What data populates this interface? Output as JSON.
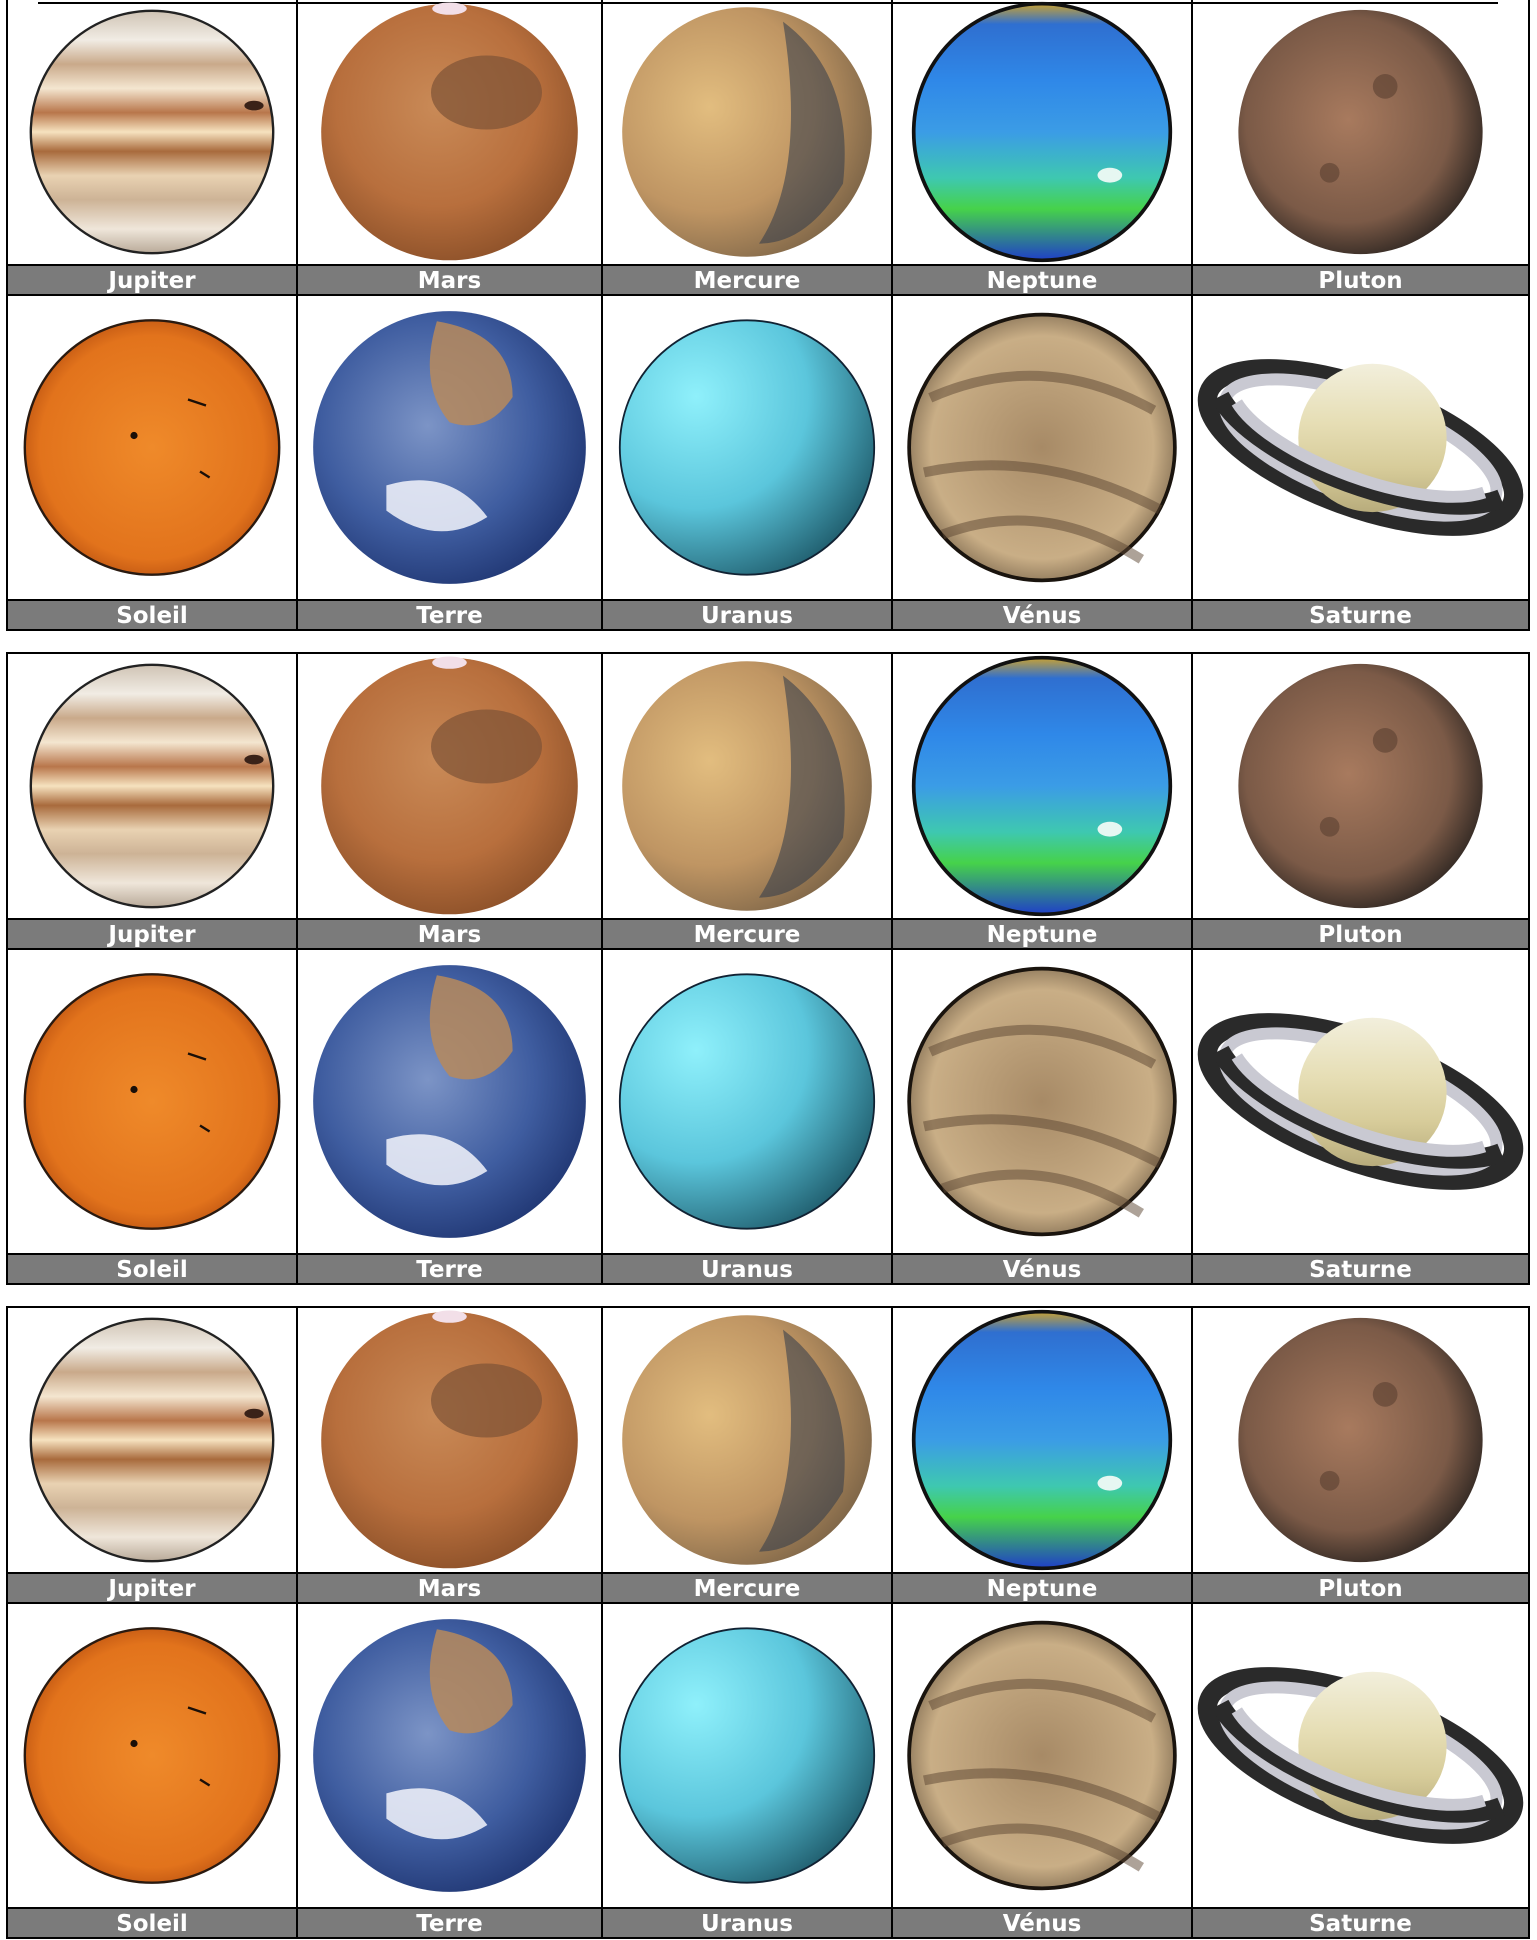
{
  "sheets": [
    {
      "row1": [
        "Jupiter",
        "Mars",
        "Mercure",
        "Neptune",
        "Pluton"
      ],
      "row2": [
        "Soleil",
        "Terre",
        "Uranus",
        "Vénus",
        "Saturne"
      ]
    },
    {
      "row1": [
        "Jupiter",
        "Mars",
        "Mercure",
        "Neptune",
        "Pluton"
      ],
      "row2": [
        "Soleil",
        "Terre",
        "Uranus",
        "Vénus",
        "Saturne"
      ]
    },
    {
      "row1": [
        "Jupiter",
        "Mars",
        "Mercure",
        "Neptune",
        "Pluton"
      ],
      "row2": [
        "Soleil",
        "Terre",
        "Uranus",
        "Vénus",
        "Saturne"
      ]
    }
  ],
  "images": {
    "row1": [
      "jupiter-image",
      "mars-image",
      "mercury-image",
      "neptune-image",
      "pluto-image"
    ],
    "row2": [
      "sun-image",
      "earth-image",
      "uranus-image",
      "venus-image",
      "saturn-image"
    ]
  },
  "colors": {
    "label_bg": "#7b7b7b",
    "label_text": "#ffffff"
  }
}
